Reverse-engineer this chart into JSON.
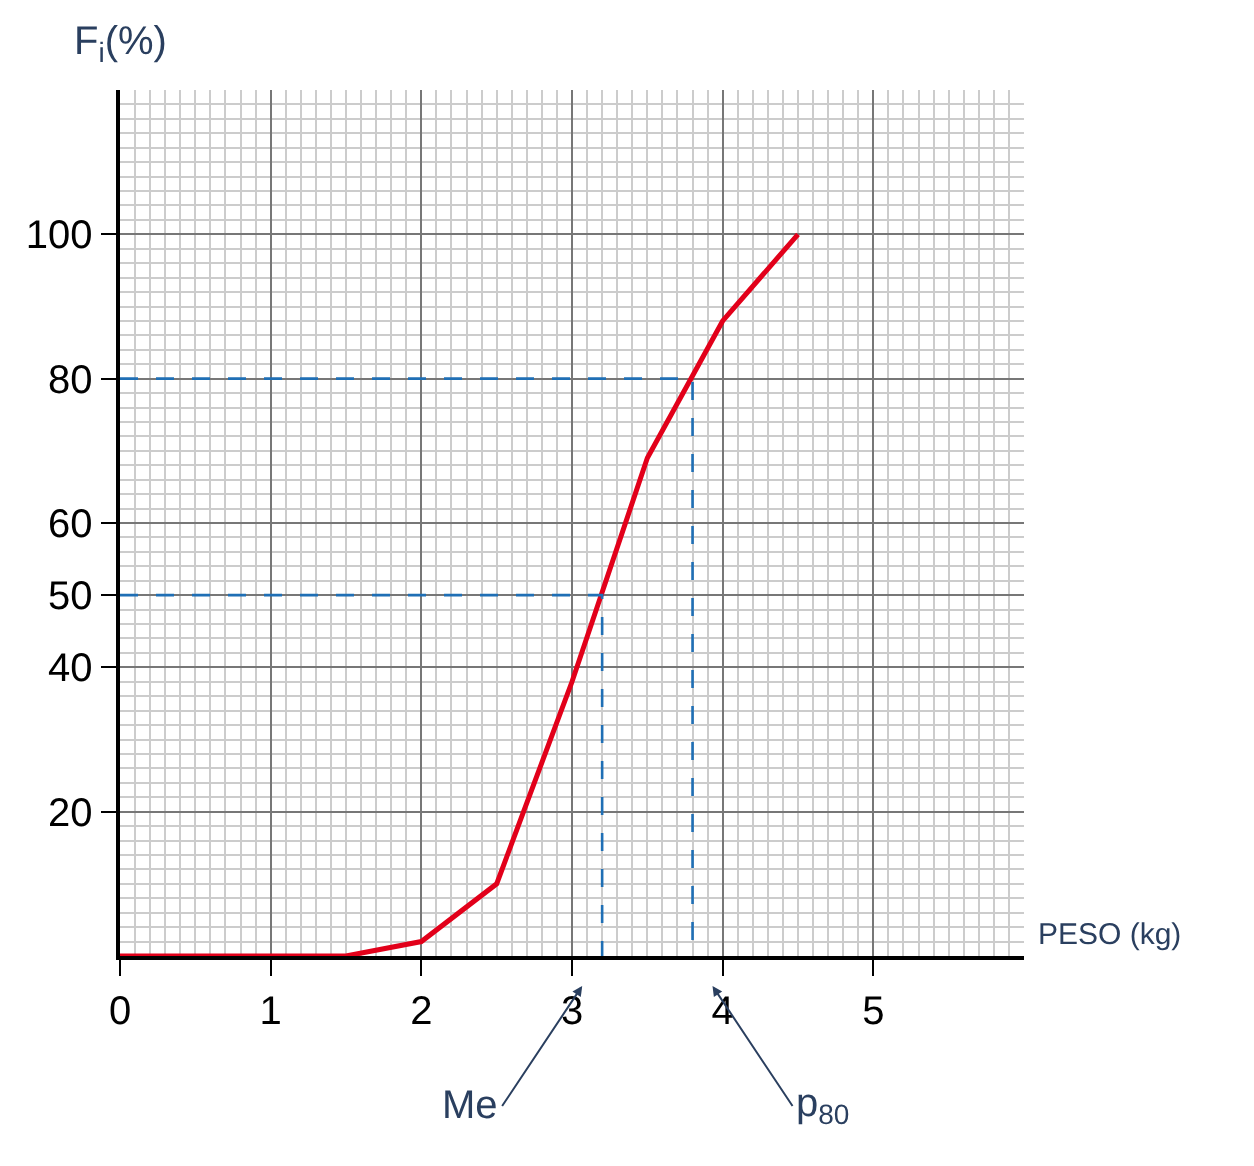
{
  "chart_data": {
    "type": "line",
    "xlabel": "PESO (kg)",
    "ylabel": "F$_{i}$(%)",
    "xlim": [
      0,
      6
    ],
    "ylim": [
      0,
      120
    ],
    "xticks": [
      0,
      1,
      2,
      3,
      4,
      5
    ],
    "yticks": [
      20,
      40,
      50,
      60,
      80,
      100
    ],
    "grid": true,
    "legend": false,
    "marker": "none",
    "series": [
      {
        "color": "#e2001a",
        "x": [
          0,
          1.5,
          2,
          2.5,
          3,
          3.5,
          4,
          4.5
        ],
        "values": [
          0,
          0,
          2,
          10,
          38,
          69,
          88,
          100
        ]
      },
      {
        "type": "line",
        "line_style": "dashed",
        "color": "#1f6fb5",
        "x": [
          0,
          3.2,
          3.2
        ],
        "values": [
          50,
          50,
          0
        ]
      },
      {
        "type": "line",
        "line_style": "dashed",
        "color": "#1f6fb5",
        "x": [
          0,
          3.8,
          3.8
        ],
        "values": [
          80,
          80,
          0
        ]
      }
    ],
    "annotations": [
      {
        "text": "Me",
        "x": 3.2,
        "y": 0
      },
      {
        "text": "p$_{80}$",
        "x": 3.8,
        "y": 0
      }
    ]
  }
}
